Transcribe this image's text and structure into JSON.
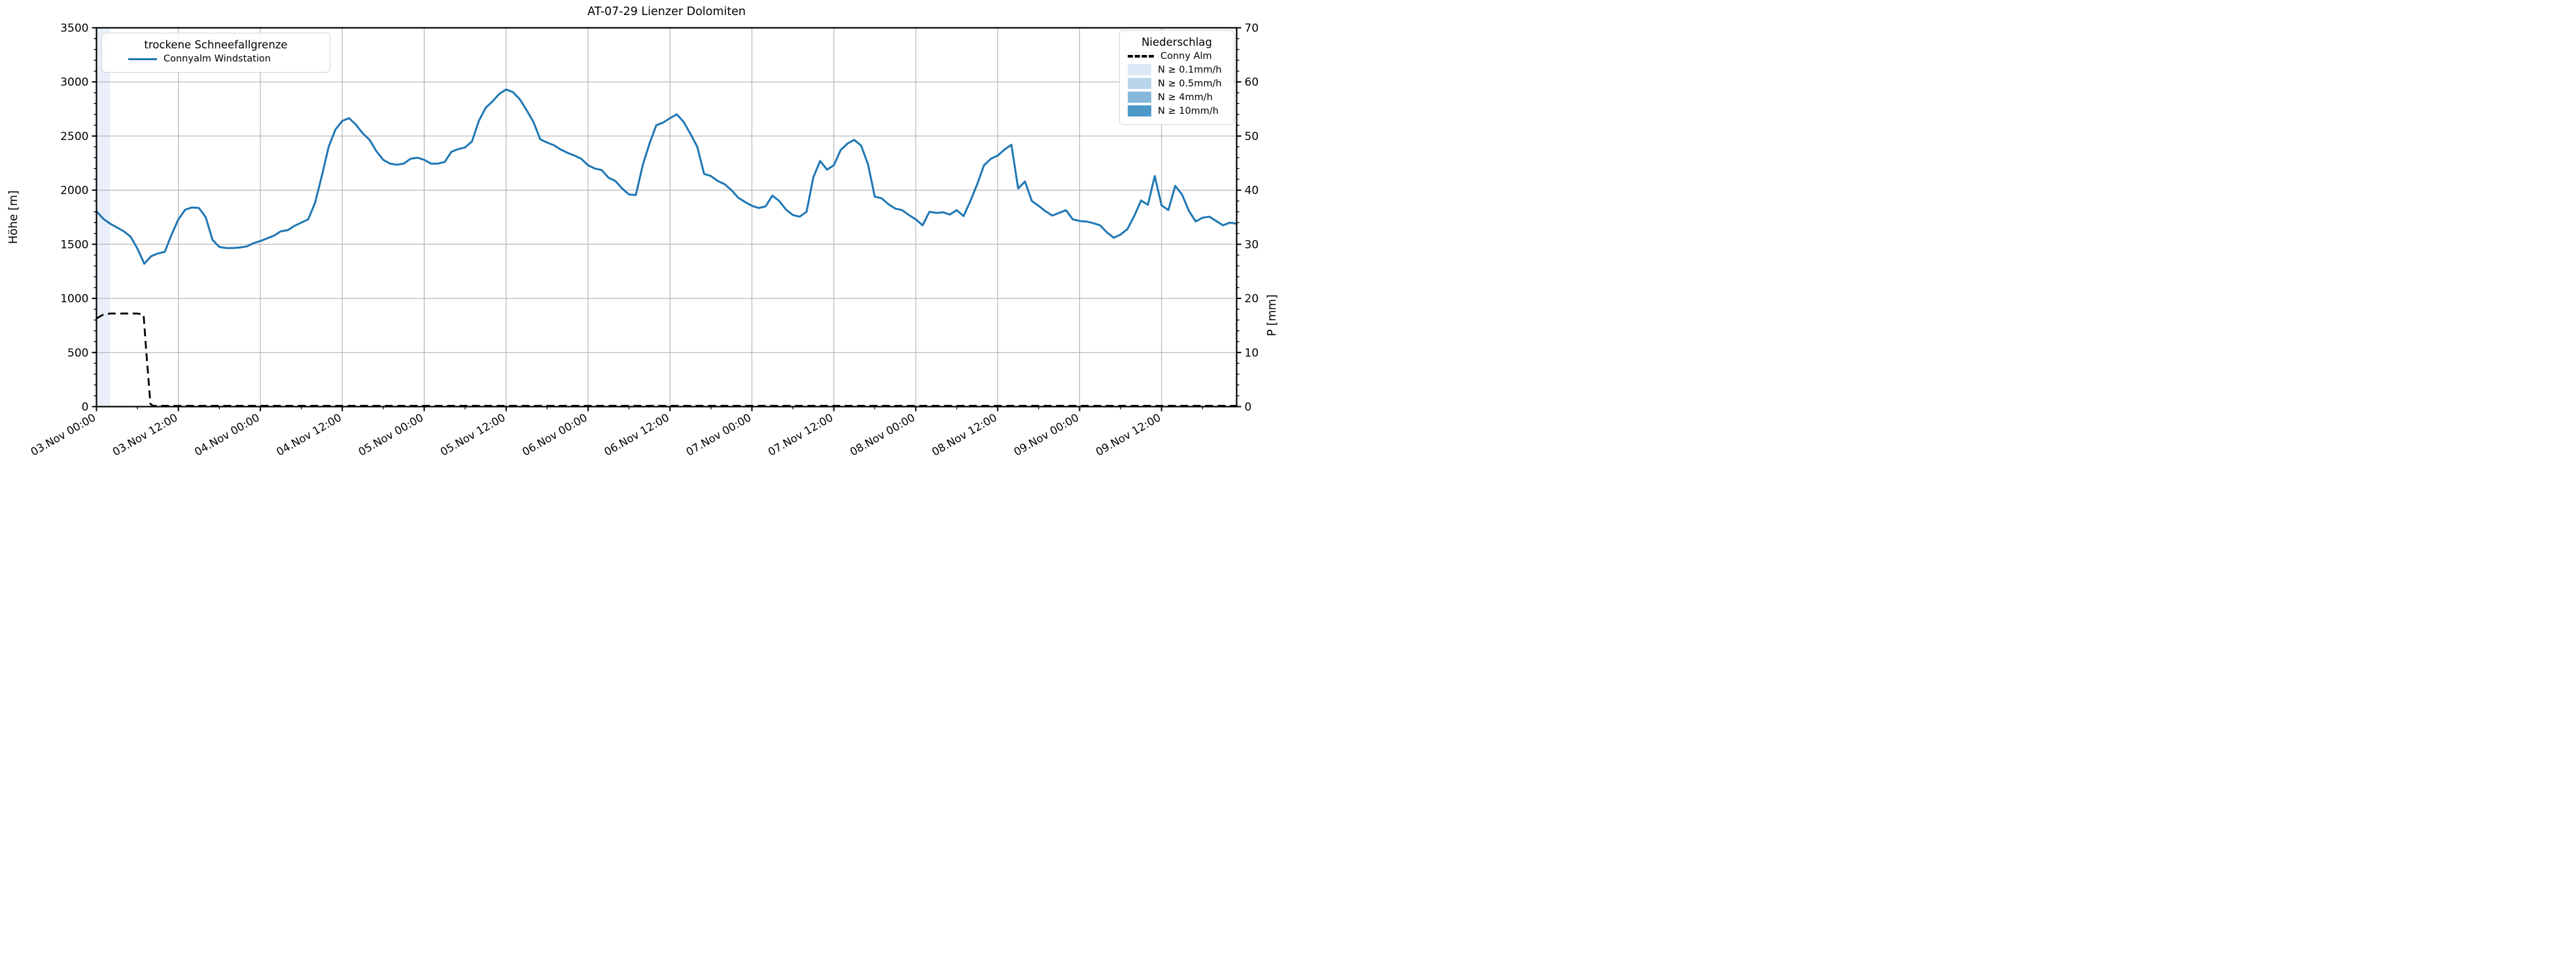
{
  "title": "AT-07-29 Lienzer Dolomiten",
  "colors": {
    "snowline": "#1f77b4",
    "precip_line": "#000000",
    "grid": "#b0b0b0",
    "spine": "#000000",
    "band_0_1": "#e9eff9",
    "legend_border": "#d4d4d4",
    "patch_0_1": "#dbe9f6",
    "patch_0_5": "#b9d5ea",
    "patch_4": "#85b8da",
    "patch_10": "#4d99c9"
  },
  "axes": {
    "y_left": {
      "label": "Höhe [m]",
      "range": [
        0,
        3500
      ],
      "major_ticks": [
        0,
        500,
        1000,
        1500,
        2000,
        2500,
        3000,
        3500
      ],
      "minor_step": 100
    },
    "y_right": {
      "label": "P [mm]",
      "range": [
        0,
        70
      ],
      "major_ticks": [
        0,
        10,
        20,
        30,
        40,
        50,
        60,
        70
      ],
      "minor_step": 2
    },
    "x": {
      "range_hours": [
        0,
        167
      ],
      "major_tick_hours": [
        0,
        12,
        24,
        36,
        48,
        60,
        72,
        84,
        96,
        108,
        120,
        132,
        144,
        156
      ],
      "minor_tick_hours": [
        6,
        18,
        30,
        42,
        54,
        66,
        78,
        90,
        102,
        114,
        126,
        138,
        150,
        162
      ],
      "tick_labels": [
        "03.Nov 00:00",
        "03.Nov 12:00",
        "04.Nov 00:00",
        "04.Nov 12:00",
        "05.Nov 00:00",
        "05.Nov 12:00",
        "06.Nov 00:00",
        "06.Nov 12:00",
        "07.Nov 00:00",
        "07.Nov 12:00",
        "08.Nov 00:00",
        "08.Nov 12:00",
        "09.Nov 00:00",
        "09.Nov 12:00"
      ]
    }
  },
  "legend_left": {
    "title": "trockene Schneefallgrenze",
    "entries": [
      {
        "label": "Connyalm Windstation",
        "swatch": "line",
        "color": "#1f77b4"
      }
    ]
  },
  "legend_right": {
    "title": "Niederschlag",
    "entries": [
      {
        "label": "Conny Alm",
        "swatch": "dash",
        "color": "#000000"
      },
      {
        "label": "N ≥ 0.1mm/h",
        "swatch": "patch",
        "color": "#dbe9f6"
      },
      {
        "label": "N ≥ 0.5mm/h",
        "swatch": "patch",
        "color": "#b9d5ea"
      },
      {
        "label": "N ≥ 4mm/h",
        "swatch": "patch",
        "color": "#85b8da"
      },
      {
        "label": "N ≥ 10mm/h",
        "swatch": "patch",
        "color": "#4d99c9"
      }
    ]
  },
  "chart_data": {
    "type": "line",
    "title": "AT-07-29 Lienzer Dolomiten",
    "xlabel": "",
    "ylabel_left": "Höhe [m]",
    "ylabel_right": "P [mm]",
    "x_unit": "hours since 03.Nov 00:00",
    "xlim": [
      0,
      167
    ],
    "ylim_left": [
      0,
      3500
    ],
    "ylim_right": [
      0,
      70
    ],
    "grid": true,
    "precip_band": {
      "x_start_h": 0,
      "x_end_h": 2,
      "class": "N ≥ 0.1mm/h",
      "color": "#e9eff9"
    },
    "series": [
      {
        "name": "Connyalm Windstation (trockene Schneefallgrenze)",
        "axis": "left",
        "style": "solid",
        "color": "#1f77b4",
        "x_step_h": 1,
        "values": [
          1805,
          1735,
          1690,
          1655,
          1620,
          1570,
          1460,
          1320,
          1390,
          1415,
          1430,
          1590,
          1730,
          1820,
          1840,
          1835,
          1750,
          1540,
          1475,
          1465,
          1465,
          1470,
          1480,
          1510,
          1530,
          1555,
          1580,
          1620,
          1630,
          1670,
          1700,
          1730,
          1880,
          2130,
          2400,
          2560,
          2640,
          2665,
          2605,
          2525,
          2465,
          2360,
          2280,
          2245,
          2235,
          2245,
          2290,
          2300,
          2280,
          2245,
          2245,
          2260,
          2355,
          2380,
          2395,
          2450,
          2640,
          2760,
          2820,
          2890,
          2930,
          2905,
          2840,
          2740,
          2630,
          2470,
          2440,
          2415,
          2375,
          2345,
          2320,
          2290,
          2230,
          2200,
          2185,
          2115,
          2085,
          2015,
          1960,
          1955,
          2230,
          2430,
          2600,
          2625,
          2665,
          2700,
          2630,
          2520,
          2400,
          2150,
          2130,
          2085,
          2055,
          2000,
          1930,
          1890,
          1855,
          1835,
          1850,
          1950,
          1900,
          1820,
          1770,
          1755,
          1800,
          2120,
          2270,
          2190,
          2230,
          2370,
          2430,
          2465,
          2410,
          2240,
          1940,
          1925,
          1870,
          1830,
          1815,
          1770,
          1730,
          1675,
          1800,
          1790,
          1795,
          1775,
          1815,
          1760,
          1900,
          2055,
          2230,
          2290,
          2320,
          2375,
          2420,
          2015,
          2080,
          1900,
          1855,
          1805,
          1765,
          1790,
          1815,
          1730,
          1715,
          1710,
          1695,
          1675,
          1610,
          1560,
          1590,
          1640,
          1760,
          1905,
          1865,
          2130,
          1860,
          1815,
          2040,
          1960,
          1810,
          1710,
          1745,
          1755,
          1715,
          1675,
          1700,
          1690
        ]
      },
      {
        "name": "Conny Alm (Niederschlag)",
        "axis": "right",
        "style": "dashed",
        "color": "#000000",
        "points_h_mm": [
          [
            0,
            16.3
          ],
          [
            1,
            17.0
          ],
          [
            2,
            17.2
          ],
          [
            6,
            17.2
          ],
          [
            6.9,
            17.0
          ],
          [
            7.3,
            10
          ],
          [
            7.9,
            0.5
          ],
          [
            8.3,
            0.15
          ],
          [
            167,
            0.15
          ]
        ]
      }
    ]
  }
}
